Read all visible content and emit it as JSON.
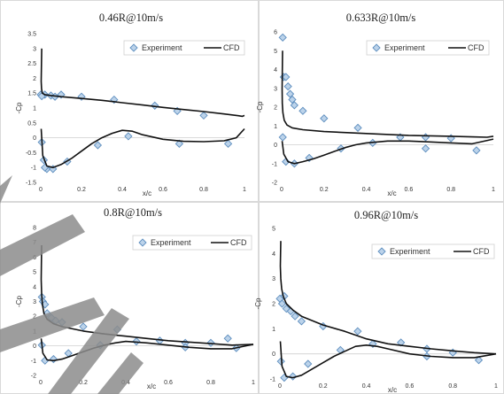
{
  "colors": {
    "marker_fill": "#bcd3ea",
    "marker_stroke": "#5f8fbf",
    "cfd_line": "#111111",
    "panel_border": "#d9d9d9",
    "watermark": "#8c8c8c"
  },
  "chart_data": [
    {
      "type": "scatter",
      "title": "0.46R@10m/s",
      "xlabel": "x/c",
      "ylabel": "-Cp",
      "xlim": [
        0,
        1
      ],
      "ylim": [
        -1.5,
        3.5
      ],
      "xticks": [
        "0",
        "0.2",
        "0.4",
        "0.6",
        "0.8",
        "1"
      ],
      "yticks": [
        "-1.5",
        "-1",
        "-0.5",
        "0",
        "0.5",
        "1",
        "1.5",
        "2",
        "2.5",
        "3",
        "3.5"
      ],
      "legend_position": "top-right",
      "series": [
        {
          "name": "Experiment",
          "kind": "markers",
          "x": [
            0,
            0.005,
            0.015,
            0.02,
            0.03,
            0.05,
            0.07,
            0.1,
            0.2,
            0.36,
            0.56,
            0.67,
            0.8,
            0.005,
            0.02,
            0.06,
            0.13,
            0.28,
            0.43,
            0.68,
            0.92
          ],
          "y": [
            1.45,
            -0.15,
            -0.75,
            1.45,
            -1.05,
            1.42,
            1.38,
            1.45,
            1.38,
            1.28,
            1.08,
            0.9,
            0.75,
            1.4,
            -1.0,
            -1.05,
            -0.8,
            -0.25,
            0.05,
            -0.2,
            -0.2
          ]
        },
        {
          "name": "CFD",
          "kind": "line",
          "x": [
            0.005,
            0.002,
            0.004,
            0.008,
            0.02,
            0.05,
            0.1,
            0.2,
            0.3,
            0.4,
            0.5,
            0.6,
            0.7,
            0.8,
            0.9,
            0.97,
            0.99,
            1.0
          ],
          "y": [
            3.0,
            1.9,
            1.65,
            1.5,
            1.45,
            1.42,
            1.38,
            1.32,
            1.26,
            1.18,
            1.1,
            1.02,
            0.95,
            0.88,
            0.8,
            0.74,
            0.72,
            0.75
          ]
        },
        {
          "kind": "line",
          "x": [
            0.002,
            0.01,
            0.03,
            0.06,
            0.1,
            0.15,
            0.2,
            0.25,
            0.3,
            0.35,
            0.4,
            0.45,
            0.5,
            0.6,
            0.7,
            0.8,
            0.9,
            0.96,
            1.0
          ],
          "y": [
            0.3,
            -0.6,
            -0.95,
            -1.0,
            -0.9,
            -0.7,
            -0.45,
            -0.2,
            0.0,
            0.15,
            0.25,
            0.22,
            0.1,
            -0.05,
            -0.12,
            -0.13,
            -0.1,
            0.0,
            0.3
          ]
        }
      ]
    },
    {
      "type": "scatter",
      "title": "0.633R@10m/s",
      "xlabel": "x/c",
      "ylabel": "-Cp",
      "xlim": [
        0,
        1
      ],
      "ylim": [
        -2,
        6
      ],
      "xticks": [
        "0",
        "0.2",
        "0.4",
        "0.6",
        "0.8",
        "1"
      ],
      "yticks": [
        "-2",
        "-1",
        "0",
        "1",
        "2",
        "3",
        "4",
        "5",
        "6"
      ],
      "legend_position": "top-right",
      "series": [
        {
          "name": "Experiment",
          "kind": "markers",
          "x": [
            0.005,
            0.01,
            0.02,
            0.03,
            0.04,
            0.05,
            0.06,
            0.1,
            0.2,
            0.36,
            0.56,
            0.68,
            0.8,
            0.005,
            0.02,
            0.06,
            0.13,
            0.28,
            0.43,
            0.68,
            0.92
          ],
          "y": [
            5.7,
            3.6,
            3.6,
            3.1,
            2.7,
            2.4,
            2.1,
            1.8,
            1.4,
            0.9,
            0.4,
            0.4,
            0.35,
            0.4,
            -0.9,
            -1.0,
            -0.7,
            -0.2,
            0.1,
            -0.2,
            -0.3
          ]
        },
        {
          "name": "CFD",
          "kind": "line",
          "x": [
            0.004,
            0.002,
            0.003,
            0.006,
            0.012,
            0.025,
            0.05,
            0.1,
            0.2,
            0.4,
            0.6,
            0.8,
            0.9,
            0.97,
            1.0
          ],
          "y": [
            5.0,
            3.0,
            2.2,
            1.7,
            1.3,
            1.05,
            0.9,
            0.8,
            0.7,
            0.6,
            0.5,
            0.45,
            0.42,
            0.4,
            0.45
          ]
        },
        {
          "kind": "line",
          "x": [
            0.002,
            0.01,
            0.03,
            0.06,
            0.1,
            0.15,
            0.2,
            0.25,
            0.3,
            0.35,
            0.4,
            0.5,
            0.6,
            0.7,
            0.8,
            0.9,
            1.0
          ],
          "y": [
            0.2,
            -0.5,
            -0.9,
            -1.0,
            -0.9,
            -0.75,
            -0.55,
            -0.35,
            -0.15,
            0.0,
            0.1,
            0.2,
            0.2,
            0.15,
            0.1,
            0.05,
            0.3
          ]
        }
      ]
    },
    {
      "type": "scatter",
      "title": "0.8R@10m/s",
      "xlabel": "x/c",
      "ylabel": "-Cp",
      "xlim": [
        0,
        1
      ],
      "ylim": [
        -2,
        8
      ],
      "xticks": [
        "0",
        "0.2",
        "0.4",
        "0.6",
        "0.8",
        "1"
      ],
      "yticks": [
        "-2",
        "-1",
        "0",
        "1",
        "2",
        "3",
        "4",
        "5",
        "6",
        "7",
        "8"
      ],
      "legend_position": "top-right",
      "series": [
        {
          "name": "Experiment",
          "kind": "markers",
          "x": [
            0.005,
            0.01,
            0.02,
            0.03,
            0.05,
            0.07,
            0.1,
            0.2,
            0.36,
            0.56,
            0.68,
            0.8,
            0.88,
            0.005,
            0.02,
            0.06,
            0.13,
            0.28,
            0.45,
            0.68,
            0.92
          ],
          "y": [
            3.3,
            3.0,
            2.8,
            2.2,
            1.9,
            1.7,
            1.6,
            1.3,
            1.1,
            0.35,
            0.2,
            0.2,
            0.5,
            0.05,
            -1.0,
            -0.9,
            -0.5,
            0.05,
            0.3,
            -0.1,
            -0.15
          ]
        },
        {
          "name": "CFD",
          "kind": "line",
          "x": [
            0.004,
            0.002,
            0.004,
            0.008,
            0.015,
            0.03,
            0.06,
            0.1,
            0.2,
            0.3,
            0.4,
            0.5,
            0.6,
            0.7,
            0.8,
            0.9,
            1.0
          ],
          "y": [
            6.8,
            4.5,
            3.5,
            2.8,
            2.2,
            1.8,
            1.5,
            1.3,
            1.0,
            0.8,
            0.65,
            0.5,
            0.35,
            0.25,
            0.15,
            0.05,
            0.1
          ]
        },
        {
          "kind": "line",
          "x": [
            0.002,
            0.01,
            0.03,
            0.06,
            0.1,
            0.15,
            0.2,
            0.25,
            0.3,
            0.35,
            0.4,
            0.5,
            0.6,
            0.7,
            0.8,
            0.9,
            1.0
          ],
          "y": [
            0.5,
            -0.5,
            -0.95,
            -1.0,
            -0.9,
            -0.65,
            -0.4,
            -0.15,
            0.05,
            0.2,
            0.3,
            0.2,
            0.05,
            -0.1,
            -0.2,
            -0.2,
            0.1
          ]
        }
      ]
    },
    {
      "type": "scatter",
      "title": "0.96R@10m/s",
      "xlabel": "x/c",
      "ylabel": "-Cp",
      "xlim": [
        0,
        1
      ],
      "ylim": [
        -1,
        5
      ],
      "xticks": [
        "0",
        "0.2",
        "0.4",
        "0.6",
        "0.8",
        "1"
      ],
      "yticks": [
        "-1",
        "0",
        "1",
        "2",
        "3",
        "4",
        "5"
      ],
      "legend_position": "top-right",
      "series": [
        {
          "name": "Experiment",
          "kind": "markers",
          "x": [
            0,
            0.01,
            0.02,
            0.03,
            0.05,
            0.07,
            0.1,
            0.2,
            0.36,
            0.56,
            0.68,
            0.8,
            0.005,
            0.02,
            0.06,
            0.13,
            0.28,
            0.43,
            0.68,
            0.92
          ],
          "y": [
            2.2,
            2.0,
            2.3,
            1.8,
            1.7,
            1.5,
            1.3,
            1.1,
            0.9,
            0.45,
            0.2,
            0.05,
            -0.3,
            -0.95,
            -0.9,
            -0.4,
            0.15,
            0.4,
            -0.1,
            -0.25
          ]
        },
        {
          "name": "CFD",
          "kind": "line",
          "x": [
            0.004,
            0.002,
            0.004,
            0.008,
            0.015,
            0.03,
            0.06,
            0.1,
            0.2,
            0.3,
            0.4,
            0.5,
            0.6,
            0.7,
            0.8,
            0.9,
            1.0
          ],
          "y": [
            4.5,
            3.5,
            3.0,
            2.6,
            2.3,
            2.0,
            1.75,
            1.5,
            1.15,
            0.9,
            0.6,
            0.4,
            0.3,
            0.2,
            0.12,
            0.05,
            0.0
          ]
        },
        {
          "kind": "line",
          "x": [
            0.002,
            0.01,
            0.03,
            0.06,
            0.1,
            0.15,
            0.2,
            0.25,
            0.3,
            0.35,
            0.4,
            0.45,
            0.5,
            0.6,
            0.7,
            0.8,
            0.9,
            1.0
          ],
          "y": [
            0.5,
            -0.5,
            -0.9,
            -0.95,
            -0.85,
            -0.6,
            -0.35,
            -0.1,
            0.1,
            0.3,
            0.35,
            0.3,
            0.2,
            0.0,
            -0.1,
            -0.15,
            -0.15,
            0.0
          ]
        }
      ]
    }
  ]
}
